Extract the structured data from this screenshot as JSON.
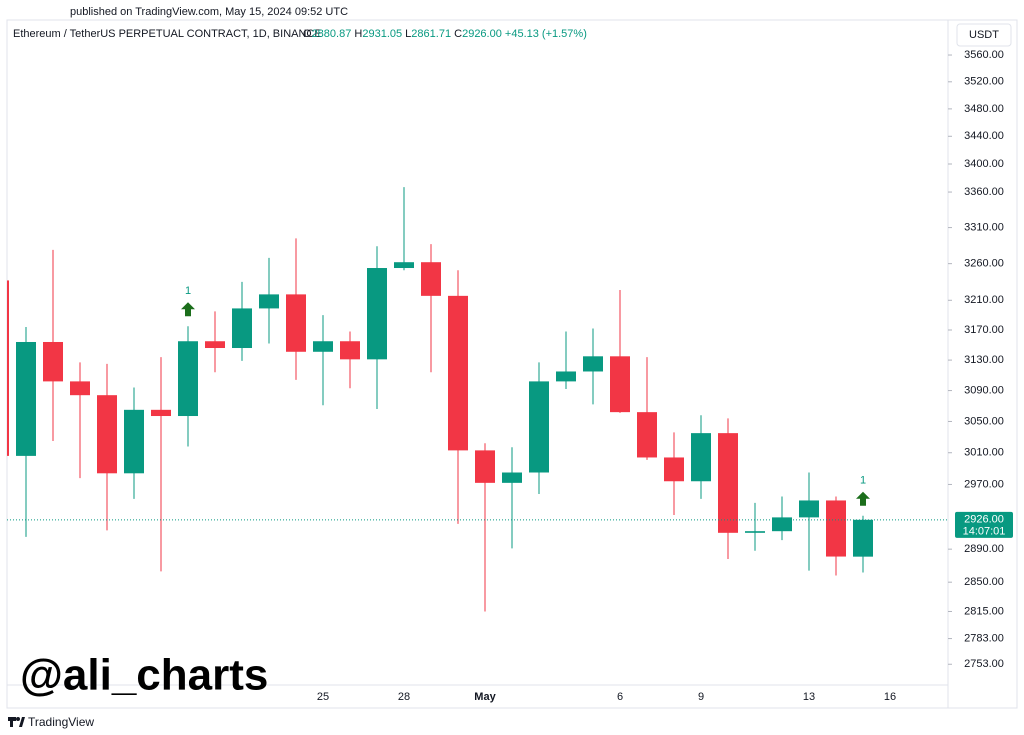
{
  "header": {
    "published": "published on TradingView.com, May 15, 2024 09:52 UTC",
    "symbol": "Ethereum / TetherUS PERPETUAL CONTRACT, 1D, BINANCE",
    "ohlc_legend": [
      {
        "key": "O",
        "value": "2880.87"
      },
      {
        "key": "H",
        "value": "2931.05"
      },
      {
        "key": "L",
        "value": "2861.71"
      },
      {
        "key": "C",
        "value": "2926.00"
      }
    ],
    "change": "+45.13 (+1.57%)"
  },
  "chart_data": {
    "type": "candlestick",
    "currency": "USDT",
    "log_scale": true,
    "up_color": "#089981",
    "down_color": "#f23645",
    "signal_color": "#089981",
    "arrow_color": "#1b6e1b",
    "categories": [
      null,
      null,
      null,
      null,
      null,
      null,
      null,
      null,
      null,
      null,
      null,
      null,
      "25",
      null,
      null,
      "28",
      null,
      null,
      "May",
      null,
      null,
      null,
      null,
      "6",
      null,
      null,
      "9",
      null,
      null,
      null,
      "13",
      null,
      null,
      "16",
      null
    ],
    "open": [
      3237,
      3006,
      3154,
      3102,
      3084,
      2984,
      3065,
      3057,
      3155,
      3146,
      3199,
      3218,
      3141,
      3155,
      3131,
      3254,
      3262,
      3216,
      3013,
      2972,
      2985,
      3102,
      3115,
      3135,
      3062,
      3004,
      2974,
      3035,
      2910,
      2912,
      2929,
      2950,
      2880.87,
      null,
      null
    ],
    "high": [
      3237,
      3174,
      3279,
      3127,
      3125,
      3094,
      3134,
      3175,
      3195,
      3235,
      3268,
      3295,
      3190,
      3168,
      3284,
      3367,
      3287,
      3251,
      3022,
      3017,
      3127,
      3168,
      3172,
      3224,
      3134,
      3036,
      3058,
      3054,
      2947,
      2955,
      2985,
      2955,
      2931.05,
      null,
      null
    ],
    "low": [
      3006,
      2905,
      3025,
      2978,
      2913,
      2952,
      2863,
      3018,
      3114,
      3129,
      3152,
      3104,
      3071,
      3093,
      3066,
      3251,
      3114,
      2921,
      2815,
      2891,
      2958,
      3092,
      3072,
      3061,
      3001,
      2932,
      2952,
      2878,
      2888,
      2901,
      2864,
      2858,
      2861.71,
      null,
      null
    ],
    "close": [
      3006,
      3154,
      3102,
      3084,
      2984,
      3065,
      3057,
      3155,
      3146,
      3199,
      3218,
      3141,
      3155,
      3131,
      3254,
      3262,
      3216,
      3013,
      2972,
      2985,
      3102,
      3115,
      3135,
      3062,
      3004,
      2974,
      3035,
      2910,
      2912,
      2929,
      2950,
      2881,
      2926.0,
      null,
      null
    ],
    "signals": [
      null,
      null,
      null,
      null,
      null,
      null,
      null,
      "1",
      null,
      null,
      null,
      null,
      null,
      null,
      null,
      null,
      null,
      null,
      null,
      null,
      null,
      null,
      null,
      null,
      null,
      null,
      null,
      null,
      null,
      null,
      null,
      null,
      "1",
      null,
      null
    ],
    "ylim": [
      2729,
      3613
    ],
    "yticks": [
      {
        "value": 2753,
        "label": "2753.00"
      },
      {
        "value": 2783,
        "label": "2783.00"
      },
      {
        "value": 2815,
        "label": "2815.00"
      },
      {
        "value": 2850,
        "label": "2850.00"
      },
      {
        "value": 2890,
        "label": "2890.00"
      },
      {
        "value": 2970,
        "label": "2970.00"
      },
      {
        "value": 3010,
        "label": "3010.00"
      },
      {
        "value": 3050,
        "label": "3050.00"
      },
      {
        "value": 3090,
        "label": "3090.00"
      },
      {
        "value": 3130,
        "label": "3130.00"
      },
      {
        "value": 3170,
        "label": "3170.00"
      },
      {
        "value": 3210,
        "label": "3210.00"
      },
      {
        "value": 3260,
        "label": "3260.00"
      },
      {
        "value": 3310,
        "label": "3310.00"
      },
      {
        "value": 3360,
        "label": "3360.00"
      },
      {
        "value": 3400,
        "label": "3400.00"
      },
      {
        "value": 3440,
        "label": "3440.00"
      },
      {
        "value": 3480,
        "label": "3480.00"
      },
      {
        "value": 3520,
        "label": "3520.00"
      },
      {
        "value": 3560,
        "label": "3560.00"
      }
    ],
    "last_price": {
      "value": 2926,
      "label": "2926.00",
      "countdown": "14:07:01"
    },
    "watermark": "@ali_charts",
    "footer": "TradingView"
  }
}
